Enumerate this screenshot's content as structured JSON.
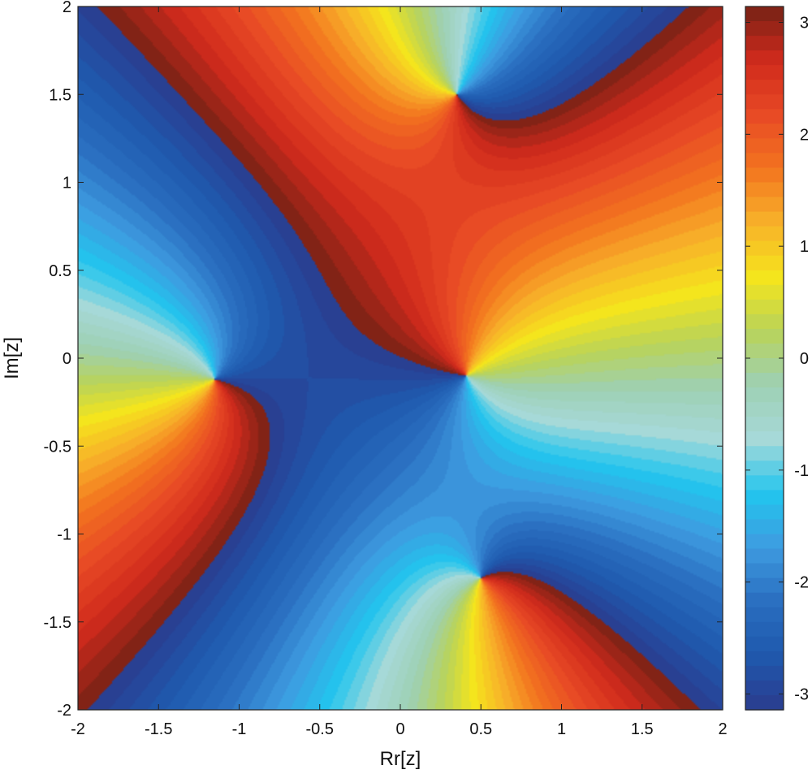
{
  "chart_data": {
    "type": "heatmap",
    "title": "",
    "xlabel": "Rr[z]",
    "ylabel": "Im[z]",
    "xlim": [
      -2,
      2
    ],
    "ylim": [
      -2,
      2
    ],
    "xticks": [
      -2,
      -1.5,
      -1,
      -0.5,
      0,
      0.5,
      1,
      1.5,
      2
    ],
    "xtick_labels": [
      "-2",
      "-1.5",
      "-1",
      "-0.5",
      "0",
      "0.5",
      "1",
      "1.5",
      "2"
    ],
    "yticks": [
      2,
      1.5,
      1,
      0.5,
      0,
      -0.5,
      -1,
      -1.5,
      -2
    ],
    "ytick_labels": [
      "2",
      "1.5",
      "1",
      "0.5",
      "0",
      "-0.5",
      "-1",
      "-1.5",
      "-2"
    ],
    "colorbar": {
      "range": [
        -3.14159,
        3.14159
      ],
      "ticks": [
        3,
        2,
        1,
        0,
        -1,
        -2,
        -3
      ],
      "tick_labels": [
        "3",
        "2",
        "1",
        "0",
        "-1",
        "-2",
        "-3"
      ],
      "levels": 48
    },
    "grid": false,
    "field": "arg of polynomial phase (filled contour, 48 levels)",
    "zeros": [
      {
        "re": 0.35,
        "im": 1.5
      },
      {
        "re": -1.15,
        "im": -0.12
      },
      {
        "re": 0.41,
        "im": -0.1
      },
      {
        "re": 0.5,
        "im": -1.25
      }
    ],
    "colormap": [
      "#2b3c8e",
      "#1f58ad",
      "#2a6fc0",
      "#3e9be0",
      "#22c5ee",
      "#a6d9d8",
      "#9ed0b4",
      "#b8d35a",
      "#f5e51c",
      "#f7b12a",
      "#f3741f",
      "#e84a25",
      "#d02a1c",
      "#762215"
    ]
  }
}
